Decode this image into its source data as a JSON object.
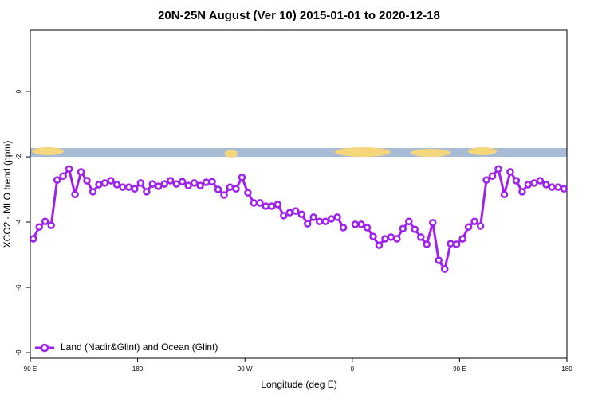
{
  "chart_data": {
    "type": "line",
    "title": "20N-25N August (Ver 10)   2015-01-01 to 2020-12-18",
    "xlabel": "Longitude (deg E)",
    "ylabel": "XCO2 - MLO trend (ppm)",
    "xlim": [
      90,
      540
    ],
    "xticks": [
      {
        "value": 90,
        "label": "90 E"
      },
      {
        "value": 180,
        "label": "180"
      },
      {
        "value": 270,
        "label": "90 W"
      },
      {
        "value": 360,
        "label": "0"
      },
      {
        "value": 450,
        "label": "90 E"
      },
      {
        "value": 540,
        "label": "180"
      }
    ],
    "ylim": [
      -8.17,
      1.88
    ],
    "yticks": [
      0,
      -2,
      -4,
      -6,
      -8
    ],
    "legend": "bottom-left",
    "x": [
      92.5,
      97.5,
      102.5,
      107.5,
      112.5,
      117.5,
      122.5,
      127.5,
      132.5,
      137.5,
      142.5,
      147.5,
      152.5,
      157.5,
      162.5,
      167.5,
      172.5,
      177.5,
      182.5,
      187.5,
      192.5,
      197.5,
      202.5,
      207.5,
      212.5,
      217.5,
      222.5,
      227.5,
      232.5,
      237.5,
      242.5,
      247.5,
      252.5,
      257.5,
      262.5,
      267.5,
      272.5,
      277.5,
      282.5,
      287.5,
      292.5,
      297.5,
      302.5,
      307.5,
      312.5,
      317.5,
      322.5,
      327.5,
      332.5,
      337.5,
      342.5,
      347.5,
      352.5,
      357.5,
      362.5,
      367.5,
      372.5,
      377.5,
      382.5,
      387.5,
      392.5,
      397.5,
      402.5,
      407.5,
      412.5,
      417.5,
      422.5,
      427.5,
      432.5,
      437.5,
      442.5,
      447.5,
      452.5,
      457.5,
      462.5,
      467.5,
      472.5,
      477.5,
      482.5,
      487.5,
      492.5,
      497.5,
      502.5,
      507.5,
      512.5,
      517.5,
      522.5,
      527.5,
      532.5,
      537.5
    ],
    "series": [
      {
        "name": "Land (Nadir&Glint) and Ocean (Glint)",
        "color": "#a020f0",
        "values": [
          -4.51,
          -4.15,
          -3.98,
          -4.1,
          -2.71,
          -2.59,
          -2.37,
          -3.15,
          -2.46,
          -2.73,
          -3.07,
          -2.85,
          -2.8,
          -2.73,
          -2.85,
          -2.93,
          -2.93,
          -2.98,
          -2.8,
          -3.07,
          -2.83,
          -2.9,
          -2.83,
          -2.73,
          -2.83,
          -2.76,
          -2.88,
          -2.8,
          -2.88,
          -2.78,
          -2.76,
          -3.0,
          -3.17,
          -2.93,
          -2.98,
          -2.63,
          -3.1,
          -3.41,
          -3.41,
          -3.51,
          -3.51,
          -3.46,
          -3.8,
          -3.71,
          -3.66,
          -3.76,
          -4.05,
          -3.85,
          -3.98,
          -3.98,
          -3.9,
          -3.85,
          -4.17,
          null,
          -4.07,
          -4.07,
          -4.17,
          -4.44,
          -4.71,
          -4.51,
          -4.46,
          -4.51,
          -4.2,
          -3.98,
          -4.22,
          -4.46,
          -4.68,
          -4.02,
          -5.17,
          -5.44,
          -4.66,
          -4.68,
          -4.51,
          -4.15,
          -3.98,
          -4.12,
          -2.71,
          -2.59,
          -2.37,
          -3.15,
          -2.46,
          -2.73,
          -3.07,
          -2.85,
          -2.8,
          -2.73,
          -2.85,
          -2.93,
          -2.93,
          -2.98
        ]
      }
    ]
  }
}
